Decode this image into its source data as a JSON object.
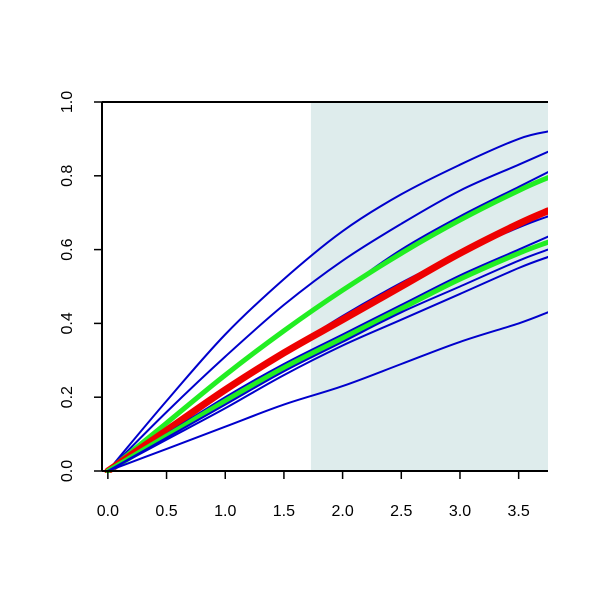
{
  "chart_data": {
    "type": "line",
    "title": "",
    "xlabel": "",
    "ylabel": "",
    "xlim": [
      -0.05,
      3.75
    ],
    "ylim": [
      0.0,
      1.0
    ],
    "xticks": [
      "0.0",
      "0.5",
      "1.0",
      "1.5",
      "2.0",
      "2.5",
      "3.0",
      "3.5"
    ],
    "yticks": [
      "0.0",
      "0.2",
      "0.4",
      "0.6",
      "0.8",
      "1.0"
    ],
    "grid": false,
    "legend": "none",
    "shaded_region": {
      "x_start": 1.73,
      "x_end": 3.75,
      "color": "#deecec"
    },
    "colors": {
      "blue": "#0000cc",
      "green": "#22ee22",
      "red": "#ee0000"
    },
    "series": [
      {
        "color": "#0000cc",
        "width": 2,
        "x": [
          0,
          0.5,
          1.0,
          1.5,
          2.0,
          2.5,
          3.0,
          3.5,
          3.75
        ],
        "y": [
          0,
          0.19,
          0.37,
          0.52,
          0.65,
          0.75,
          0.83,
          0.9,
          0.92
        ]
      },
      {
        "color": "#0000cc",
        "width": 2,
        "x": [
          0,
          0.5,
          1.0,
          1.5,
          2.0,
          2.5,
          3.0,
          3.5,
          3.75
        ],
        "y": [
          0,
          0.16,
          0.31,
          0.45,
          0.57,
          0.67,
          0.76,
          0.83,
          0.865
        ]
      },
      {
        "color": "#0000cc",
        "width": 2,
        "x": [
          0,
          0.5,
          1.0,
          1.5,
          2.0,
          2.5,
          3.0,
          3.5,
          3.75
        ],
        "y": [
          0,
          0.13,
          0.26,
          0.38,
          0.49,
          0.6,
          0.69,
          0.77,
          0.81
        ]
      },
      {
        "color": "#22ee22",
        "width": 5,
        "x": [
          0,
          0.5,
          1.0,
          1.5,
          2.0,
          2.5,
          3.0,
          3.5,
          3.75
        ],
        "y": [
          0,
          0.13,
          0.26,
          0.38,
          0.49,
          0.59,
          0.68,
          0.76,
          0.795
        ]
      },
      {
        "color": "#0000cc",
        "width": 2,
        "x": [
          0,
          0.5,
          1.0,
          1.5,
          2.0,
          2.5,
          3.0,
          3.5,
          3.75
        ],
        "y": [
          0,
          0.11,
          0.22,
          0.32,
          0.42,
          0.51,
          0.59,
          0.66,
          0.69
        ]
      },
      {
        "color": "#ee0000",
        "width": 7,
        "x": [
          0,
          0.5,
          1.0,
          1.5,
          2.0,
          2.5,
          3.0,
          3.5,
          3.75
        ],
        "y": [
          0,
          0.11,
          0.22,
          0.32,
          0.41,
          0.5,
          0.59,
          0.67,
          0.705
        ]
      },
      {
        "color": "#0000cc",
        "width": 2,
        "x": [
          0,
          0.5,
          1.0,
          1.5,
          2.0,
          2.5,
          3.0,
          3.5,
          3.75
        ],
        "y": [
          0,
          0.1,
          0.2,
          0.29,
          0.37,
          0.45,
          0.53,
          0.6,
          0.635
        ]
      },
      {
        "color": "#22ee22",
        "width": 5,
        "x": [
          0,
          0.5,
          1.0,
          1.5,
          2.0,
          2.5,
          3.0,
          3.5,
          3.75
        ],
        "y": [
          0,
          0.095,
          0.19,
          0.28,
          0.36,
          0.44,
          0.52,
          0.59,
          0.62
        ]
      },
      {
        "color": "#0000cc",
        "width": 2,
        "x": [
          0,
          0.5,
          1.0,
          1.5,
          2.0,
          2.5,
          3.0,
          3.5,
          3.75
        ],
        "y": [
          0,
          0.09,
          0.18,
          0.27,
          0.35,
          0.43,
          0.5,
          0.57,
          0.6
        ]
      },
      {
        "color": "#0000cc",
        "width": 2,
        "x": [
          0,
          0.5,
          1.0,
          1.5,
          2.0,
          2.5,
          3.0,
          3.5,
          3.75
        ],
        "y": [
          0,
          0.085,
          0.17,
          0.26,
          0.34,
          0.41,
          0.48,
          0.55,
          0.58
        ]
      },
      {
        "color": "#0000cc",
        "width": 2,
        "x": [
          0,
          0.5,
          1.0,
          1.5,
          2.0,
          2.5,
          3.0,
          3.5,
          3.75
        ],
        "y": [
          0,
          0.06,
          0.12,
          0.18,
          0.23,
          0.29,
          0.35,
          0.4,
          0.43
        ]
      }
    ]
  }
}
